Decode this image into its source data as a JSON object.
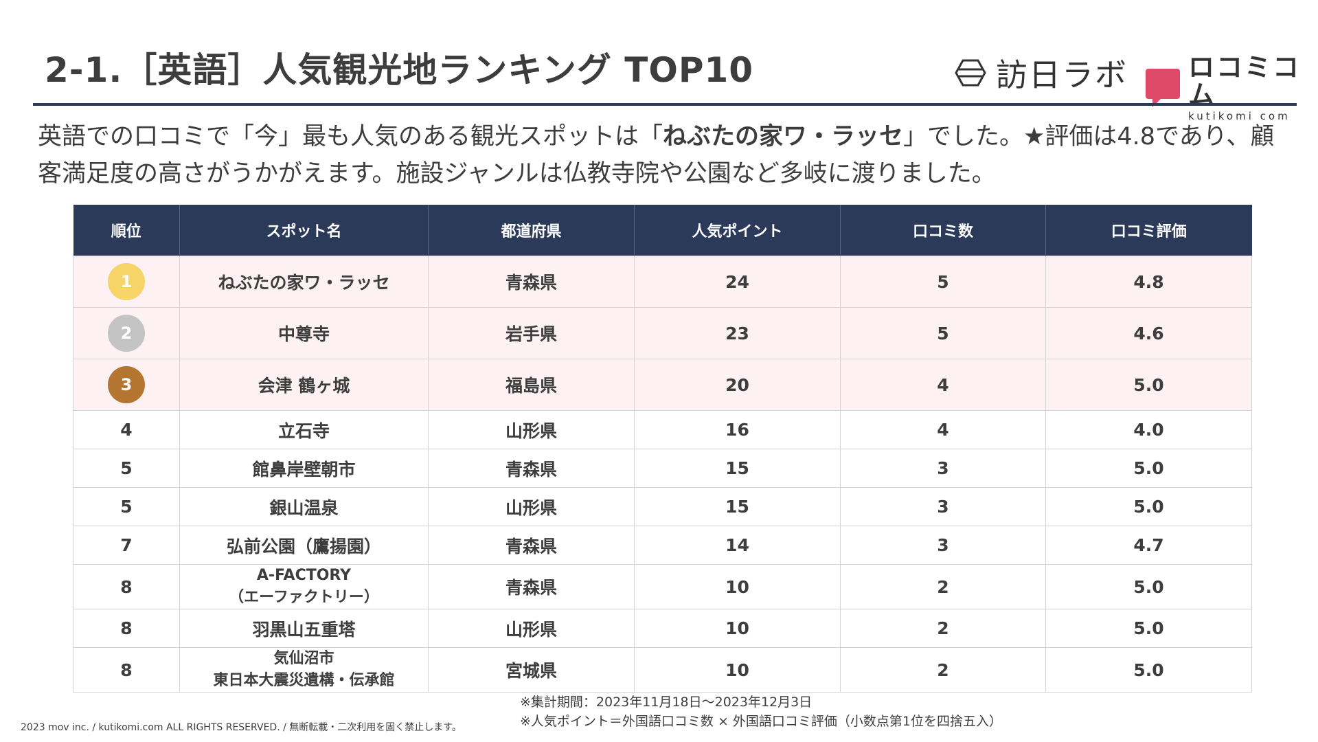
{
  "title": "2-1.［英語］人気観光地ランキング TOP10",
  "logos": {
    "logo1_text": "訪日ラボ",
    "logo2_text": "ロコミコム",
    "logo2_sub": "kutikomi com",
    "logo2_color": "#e04a6a"
  },
  "lead": {
    "part1": "英語での口コミで「今」最も人気のある観光スポットは「",
    "highlight": "ねぶたの家ワ・ラッセ",
    "part2": "」でした。★評価は4.8であり、顧客満足度の高さがうかがえます。施設ジャンルは仏教寺院や公園など多岐に渡りました。"
  },
  "table": {
    "headers": [
      "順位",
      "スポット名",
      "都道府県",
      "人気ポイント",
      "口コミ数",
      "口コミ評価"
    ],
    "medal_colors": [
      "#f6d468",
      "#c4c4c4",
      "#b47531"
    ],
    "rows": [
      {
        "rank": "1",
        "name_lines": [
          "ねぶたの家ワ・ラッセ"
        ],
        "pref": "青森県",
        "points": "24",
        "count": "5",
        "rating": "4.8"
      },
      {
        "rank": "2",
        "name_lines": [
          "中尊寺"
        ],
        "pref": "岩手県",
        "points": "23",
        "count": "5",
        "rating": "4.6"
      },
      {
        "rank": "3",
        "name_lines": [
          "会津 鶴ヶ城"
        ],
        "pref": "福島県",
        "points": "20",
        "count": "4",
        "rating": "5.0"
      },
      {
        "rank": "4",
        "name_lines": [
          "立石寺"
        ],
        "pref": "山形県",
        "points": "16",
        "count": "4",
        "rating": "4.0"
      },
      {
        "rank": "5",
        "name_lines": [
          "館鼻岸壁朝市"
        ],
        "pref": "青森県",
        "points": "15",
        "count": "3",
        "rating": "5.0"
      },
      {
        "rank": "5",
        "name_lines": [
          "銀山温泉"
        ],
        "pref": "山形県",
        "points": "15",
        "count": "3",
        "rating": "5.0"
      },
      {
        "rank": "7",
        "name_lines": [
          "弘前公園（鷹揚園）"
        ],
        "pref": "青森県",
        "points": "14",
        "count": "3",
        "rating": "4.7"
      },
      {
        "rank": "8",
        "name_lines": [
          "A-FACTORY",
          "（エーファクトリー）"
        ],
        "pref": "青森県",
        "points": "10",
        "count": "2",
        "rating": "5.0"
      },
      {
        "rank": "8",
        "name_lines": [
          "羽黒山五重塔"
        ],
        "pref": "山形県",
        "points": "10",
        "count": "2",
        "rating": "5.0"
      },
      {
        "rank": "8",
        "name_lines": [
          "気仙沼市",
          "東日本大震災遺構・伝承館"
        ],
        "pref": "宮城県",
        "points": "10",
        "count": "2",
        "rating": "5.0"
      }
    ]
  },
  "notes": [
    "※集計期間：2023年11月18日〜2023年12月3日",
    "※人気ポイント＝外国語口コミ数 × 外国語口コミ評価（小数点第1位を四捨五入）"
  ],
  "copyright": "2023 mov inc. / kutikomi.com ALL RIGHTS RESERVED. / 無断転載・二次利用を固く禁止します。"
}
